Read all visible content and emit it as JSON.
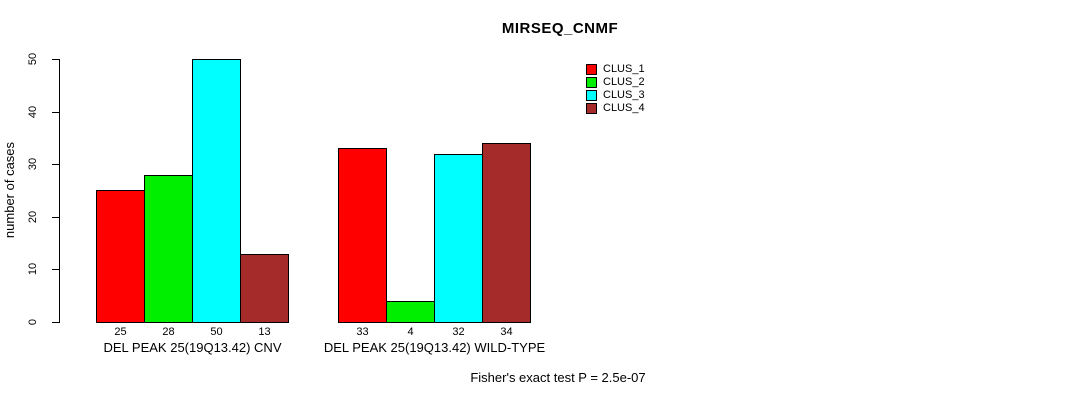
{
  "chart_data": {
    "type": "bar",
    "title": "MIRSEQ_CNMF",
    "ylabel": "number of cases",
    "ylim": [
      0,
      50
    ],
    "yticks": [
      0,
      10,
      20,
      30,
      40,
      50
    ],
    "grid": false,
    "legend_position": "right",
    "series": [
      {
        "name": "CLUS_1",
        "color": "#FF0000"
      },
      {
        "name": "CLUS_2",
        "color": "#00EE00"
      },
      {
        "name": "CLUS_3",
        "color": "#00FFFF"
      },
      {
        "name": "CLUS_4",
        "color": "#A52A2A"
      }
    ],
    "groups": [
      {
        "label": "DEL PEAK 25(19Q13.42) CNV",
        "values": [
          25,
          28,
          50,
          13
        ]
      },
      {
        "label": "DEL PEAK 25(19Q13.42) WILD-TYPE",
        "values": [
          33,
          4,
          32,
          34
        ]
      }
    ],
    "bar_value_labels": [
      [
        "25",
        "28",
        "50",
        "13"
      ],
      [
        "33",
        "4",
        "32",
        "34"
      ]
    ],
    "annotation": "Fisher's exact test P = 2.5e-07"
  }
}
